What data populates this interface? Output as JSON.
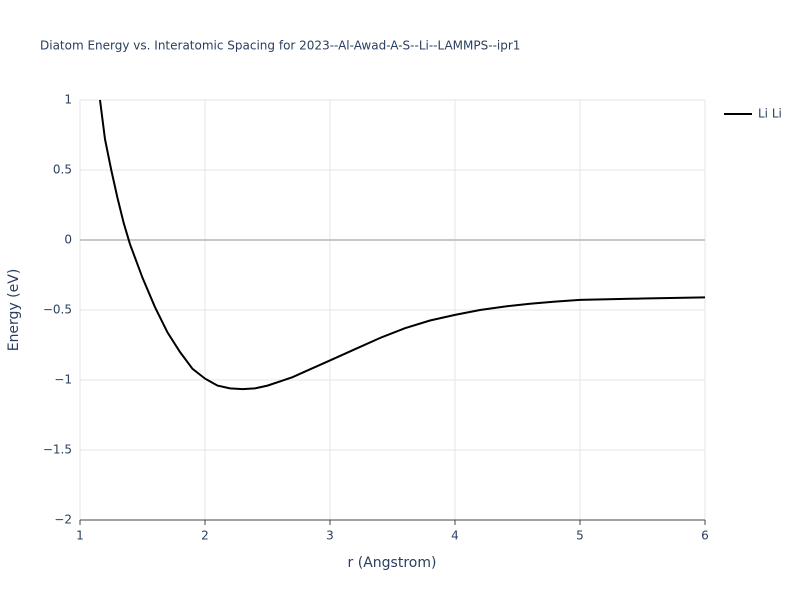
{
  "chart_data": {
    "type": "line",
    "title": "Diatom Energy vs. Interatomic Spacing for 2023--Al-Awad-A-S--Li--LAMMPS--ipr1",
    "xlabel": "r (Angstrom)",
    "ylabel": "Energy (eV)",
    "x": [
      1.16,
      1.2,
      1.25,
      1.3,
      1.35,
      1.4,
      1.5,
      1.6,
      1.7,
      1.8,
      1.9,
      2.0,
      2.1,
      2.2,
      2.3,
      2.4,
      2.5,
      2.6,
      2.7,
      2.8,
      3.0,
      3.2,
      3.4,
      3.6,
      3.8,
      4.0,
      4.2,
      4.4,
      4.6,
      4.8,
      5.0,
      5.5,
      6.0
    ],
    "series": [
      {
        "name": "Li Li",
        "color": "#000000",
        "values": [
          1.0,
          0.72,
          0.5,
          0.3,
          0.12,
          -0.03,
          -0.27,
          -0.48,
          -0.66,
          -0.8,
          -0.92,
          -0.99,
          -1.04,
          -1.06,
          -1.065,
          -1.06,
          -1.04,
          -1.01,
          -0.98,
          -0.94,
          -0.86,
          -0.78,
          -0.7,
          -0.63,
          -0.575,
          -0.535,
          -0.5,
          -0.475,
          -0.455,
          -0.44,
          -0.428,
          -0.418,
          -0.41
        ]
      }
    ],
    "xlim": [
      1,
      6
    ],
    "xticks": [
      1,
      2,
      3,
      4,
      5,
      6
    ],
    "ylim": [
      -2,
      1
    ],
    "yticks": [
      {
        "value": -2,
        "label": "−2"
      },
      {
        "value": -1.5,
        "label": "−1.5"
      },
      {
        "value": -1,
        "label": "−1"
      },
      {
        "value": -0.5,
        "label": "−0.5"
      },
      0,
      0.5,
      1
    ],
    "grid": true,
    "legend": "right"
  }
}
